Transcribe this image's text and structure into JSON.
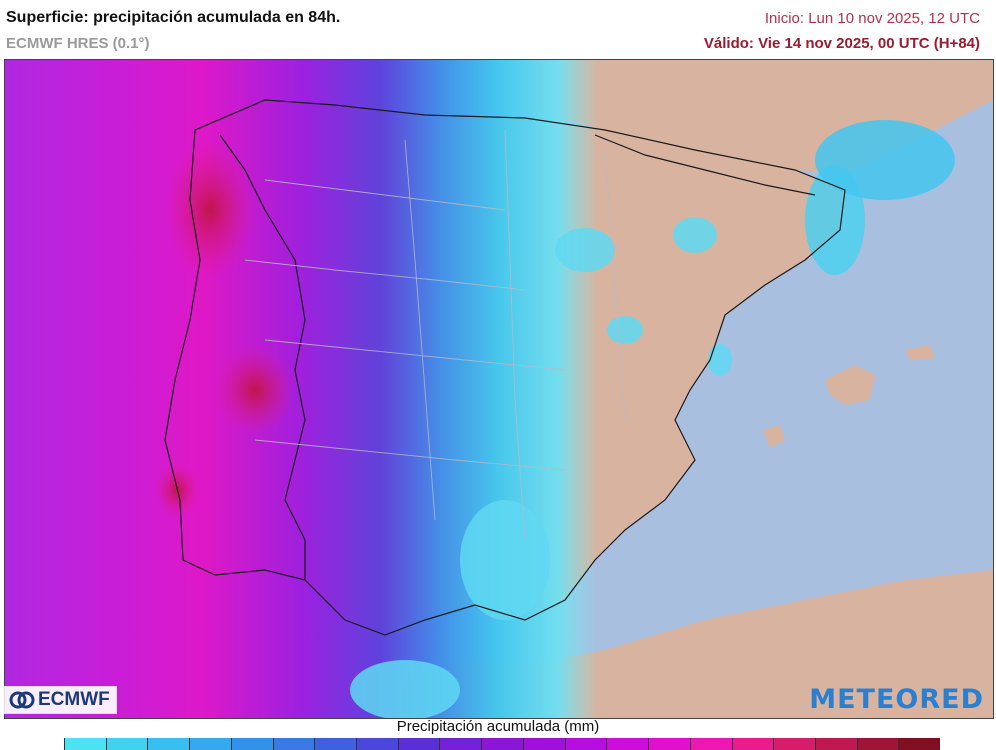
{
  "header": {
    "title": "Superficie: precipitación acumulada en 84h.",
    "model": "ECMWF HRES (0.1°)",
    "init": "Inicio: Lun 10 nov 2025, 12 UTC",
    "valid": "Válido: Vie 14 nov 2025, 00 UTC (H+84)"
  },
  "logos": {
    "left": "ECMWF",
    "right": "METEORED"
  },
  "legend": {
    "title": "Precipitación acumulada (mm)",
    "colors": [
      "#4be3f2",
      "#3fd3f0",
      "#37bff0",
      "#33a9ee",
      "#3291ea",
      "#3a78e6",
      "#4160e0",
      "#4a48dc",
      "#5a2fd8",
      "#7320d8",
      "#8a16d8",
      "#a010dc",
      "#b80de0",
      "#cc0ddc",
      "#e010d0",
      "#ec18b0",
      "#e81c8c",
      "#d81c6c",
      "#c01850",
      "#a01438",
      "#801020"
    ]
  },
  "map": {
    "sea_color": "#a9bfe0",
    "land_color": "#d8b4a0",
    "icons": [
      "ecmwf-logo-icon"
    ]
  }
}
